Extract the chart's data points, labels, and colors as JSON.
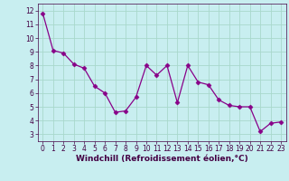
{
  "x": [
    0,
    1,
    2,
    3,
    4,
    5,
    6,
    7,
    8,
    9,
    10,
    11,
    12,
    13,
    14,
    15,
    16,
    17,
    18,
    19,
    20,
    21,
    22,
    23
  ],
  "y": [
    11.8,
    9.1,
    8.9,
    8.1,
    7.8,
    6.5,
    6.0,
    4.6,
    4.7,
    5.7,
    8.0,
    7.3,
    8.0,
    5.3,
    8.0,
    6.8,
    6.6,
    5.5,
    5.1,
    5.0,
    5.0,
    3.2,
    3.8,
    3.9
  ],
  "xlim": [
    -0.5,
    23.5
  ],
  "ylim": [
    2.5,
    12.5
  ],
  "yticks": [
    3,
    4,
    5,
    6,
    7,
    8,
    9,
    10,
    11,
    12
  ],
  "xticks": [
    0,
    1,
    2,
    3,
    4,
    5,
    6,
    7,
    8,
    9,
    10,
    11,
    12,
    13,
    14,
    15,
    16,
    17,
    18,
    19,
    20,
    21,
    22,
    23
  ],
  "xlabel": "Windchill (Refroidissement éolien,°C)",
  "line_color": "#880088",
  "marker": "D",
  "marker_size": 2.5,
  "bg_color": "#c8eef0",
  "grid_color": "#a8d8cc",
  "tick_fontsize": 5.5,
  "xlabel_fontsize": 6.5
}
